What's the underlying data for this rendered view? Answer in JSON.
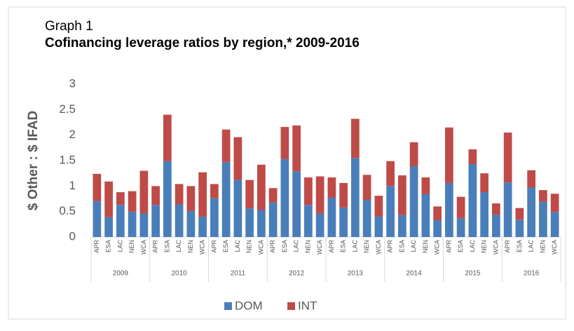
{
  "chart_data": {
    "type": "stacked-bar",
    "subtitle": "Graph 1",
    "title": "Cofinancing leverage ratios by region,* 2009-2016",
    "y_label": "$ Other : $ IFAD",
    "group_labels": [
      "2009",
      "2010",
      "2011",
      "2012",
      "2013",
      "2014",
      "2015",
      "2016"
    ],
    "categories": [
      "APR",
      "ESA",
      "LAC",
      "NEN",
      "WCA",
      "APR",
      "ESA",
      "LAC",
      "NEN",
      "WCA",
      "APR",
      "ESA",
      "LAC",
      "NEN",
      "WCA",
      "APR",
      "ESA",
      "LAC",
      "NEN",
      "WCA",
      "APR",
      "ESA",
      "LAC",
      "NEN",
      "WCA",
      "APR",
      "ESA",
      "LAC",
      "NEN",
      "WCA",
      "APR",
      "ESA",
      "LAC",
      "NEN",
      "WCA",
      "APR",
      "ESA",
      "LAC",
      "NEN",
      "WCA"
    ],
    "series": [
      {
        "name": "DOM",
        "color": "#4a7ebb",
        "values": [
          0.7,
          0.39,
          0.63,
          0.5,
          0.46,
          0.63,
          1.49,
          0.64,
          0.51,
          0.4,
          0.76,
          1.47,
          1.12,
          0.56,
          0.53,
          0.68,
          1.53,
          1.29,
          0.63,
          0.46,
          0.77,
          0.58,
          1.55,
          0.73,
          0.4,
          1.0,
          0.43,
          1.39,
          0.84,
          0.33,
          1.06,
          0.37,
          1.43,
          0.88,
          0.44,
          1.07,
          0.34,
          0.97,
          0.69,
          0.49
        ]
      },
      {
        "name": "INT",
        "color": "#be4b48",
        "values": [
          0.54,
          0.7,
          0.25,
          0.4,
          0.84,
          0.37,
          0.91,
          0.4,
          0.49,
          0.87,
          0.28,
          0.64,
          0.84,
          0.56,
          0.89,
          0.28,
          0.63,
          0.9,
          0.54,
          0.73,
          0.4,
          0.48,
          0.77,
          0.49,
          0.41,
          0.49,
          0.78,
          0.47,
          0.33,
          0.27,
          1.09,
          0.42,
          0.29,
          0.37,
          0.22,
          0.98,
          0.23,
          0.34,
          0.23,
          0.36
        ]
      }
    ],
    "ylim": [
      0,
      3
    ],
    "yticks": [
      0,
      0.5,
      1,
      1.5,
      2,
      2.5,
      3
    ],
    "grid": false,
    "legend": "bottom"
  }
}
